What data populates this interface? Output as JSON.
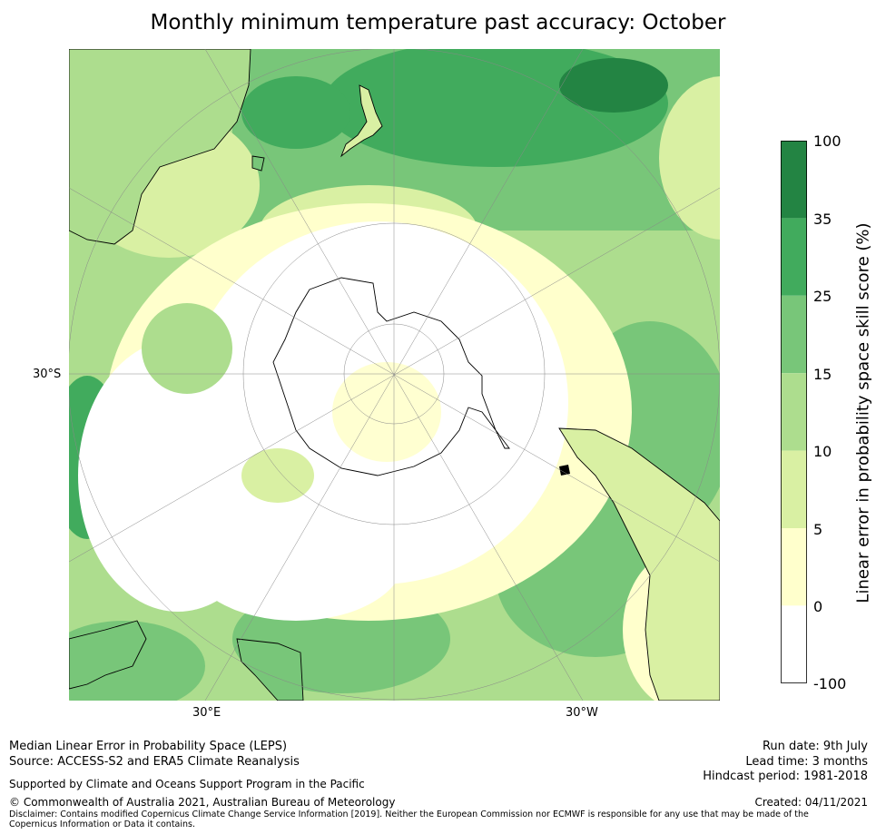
{
  "title": "Monthly minimum temperature past accuracy: October",
  "map": {
    "projection": "south-polar-stereographic",
    "lat_label": "30°S",
    "lon_labels": [
      "30°E",
      "30°W"
    ],
    "icons": [
      "antarctica-landmass",
      "new-zealand",
      "australia",
      "south-america",
      "africa"
    ]
  },
  "colorbar": {
    "label": "Linear error in probability space skill score (%)",
    "ticks": [
      "100",
      "35",
      "25",
      "15",
      "10",
      "5",
      "0",
      "-100"
    ],
    "bands": [
      {
        "range": "-100 to 0",
        "color": "#ffffff"
      },
      {
        "range": "0 to 5",
        "color": "#ffffcc"
      },
      {
        "range": "5 to 10",
        "color": "#d9f0a3"
      },
      {
        "range": "10 to 15",
        "color": "#addd8e"
      },
      {
        "range": "15 to 25",
        "color": "#78c679"
      },
      {
        "range": "25 to 35",
        "color": "#41ab5d"
      },
      {
        "range": "35 to 100",
        "color": "#238443"
      }
    ]
  },
  "footer": {
    "left_line1": "Median Linear Error in Probability Space (LEPS)",
    "left_line2": "Source: ACCESS-S2 and ERA5 Climate Reanalysis",
    "support": "Supported by Climate and Oceans Support Program in the Pacific",
    "copyright": "© Commonwealth of Australia 2021, Australian Bureau of Meteorology",
    "disclaimer": "Disclaimer: Contains modified Copernicus Climate Change Service Information [2019]. Neither the European Commission nor ECMWF is responsible for any use that may be made of the Copernicus Information or Data it contains.",
    "run_date": "Run date: 9th July",
    "lead_time": "Lead time: 3 months",
    "hindcast": "Hindcast period: 1981-2018",
    "created": "Created: 04/11/2021"
  }
}
